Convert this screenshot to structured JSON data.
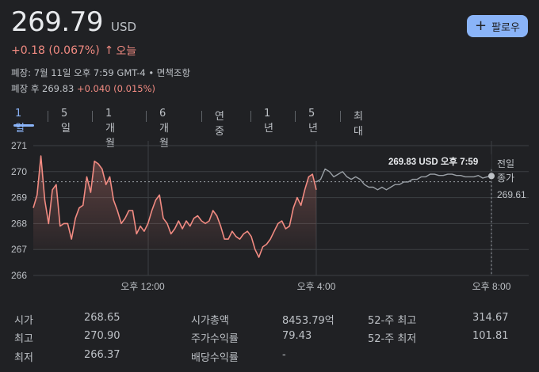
{
  "quote": {
    "price": "269.79",
    "currency": "USD",
    "change": "+0.18 (0.067%)",
    "change_arrow": "↑",
    "period": "오늘",
    "close_info": "폐장: 7월 11일 오후 7:59 GMT-4 • 면책조항",
    "after_hours_label": "폐장 후 269.83",
    "after_hours_change": "+0.040 (0.015%)"
  },
  "follow_button": {
    "icon": "plus-icon",
    "label": "팔로우"
  },
  "tabs": [
    "1일",
    "5일",
    "1개월",
    "6개월",
    "연중",
    "1년",
    "5년",
    "최대"
  ],
  "active_tab": "1일",
  "colors": {
    "up": "#f28b82",
    "accent": "#8ab4f8",
    "after_hours": "#9aa0a6",
    "background": "#202124"
  },
  "chart_data": {
    "type": "line",
    "y_ticks": [
      "271",
      "270",
      "269",
      "268",
      "267",
      "266"
    ],
    "ylim": [
      265.9,
      271.2
    ],
    "x_ticks": [
      "오후 12:00",
      "오후 4:00",
      "오후 8:00"
    ],
    "previous_close": {
      "label_line1": "전일",
      "label_line2": "종가",
      "value": "269.61"
    },
    "tooltip": {
      "value": "269.83 USD",
      "time": "오후 7:59"
    },
    "regular_session": [
      268.6,
      269.1,
      270.6,
      268.9,
      268.0,
      269.3,
      269.5,
      267.9,
      268.0,
      268.0,
      267.4,
      268.2,
      268.6,
      268.7,
      269.8,
      269.2,
      270.4,
      270.3,
      270.1,
      269.5,
      269.8,
      268.9,
      268.5,
      268.0,
      268.2,
      268.5,
      268.5,
      267.6,
      267.9,
      267.7,
      268.0,
      268.5,
      268.9,
      269.1,
      268.2,
      268.0,
      267.6,
      267.8,
      268.1,
      267.8,
      268.1,
      267.9,
      268.2,
      268.3,
      268.1,
      268.0,
      268.1,
      268.5,
      268.3,
      267.9,
      267.4,
      267.4,
      267.7,
      267.5,
      267.4,
      267.6,
      267.7,
      267.5,
      267.0,
      266.7,
      267.1,
      267.2,
      267.4,
      267.7,
      268.0,
      268.1,
      267.8,
      267.9,
      268.6,
      269.0,
      268.7,
      269.3,
      269.8,
      269.9,
      269.3
    ],
    "after_hours": [
      269.6,
      269.7,
      270.1,
      270.0,
      269.8,
      269.9,
      270.0,
      269.8,
      269.7,
      269.8,
      269.7,
      269.5,
      269.4,
      269.4,
      269.3,
      269.4,
      269.3,
      269.4,
      269.5,
      269.5,
      269.6,
      269.6,
      269.7,
      269.7,
      269.8,
      269.8,
      269.9,
      269.9,
      269.85,
      269.85,
      269.9,
      269.9,
      269.85,
      269.85,
      269.8,
      269.8,
      269.8,
      269.85,
      269.75,
      269.8,
      269.83
    ]
  },
  "stats": {
    "open_label": "시가",
    "open": "268.65",
    "high_label": "최고",
    "high": "270.90",
    "low_label": "최저",
    "low": "266.37",
    "mktcap_label": "시가총액",
    "mktcap": "8453.79억",
    "pe_label": "주가수익률",
    "pe": "79.43",
    "div_label": "배당수익률",
    "div": "-",
    "high52_label": "52-주 최고",
    "high52": "314.67",
    "low52_label": "52-주 최저",
    "low52": "101.81"
  }
}
